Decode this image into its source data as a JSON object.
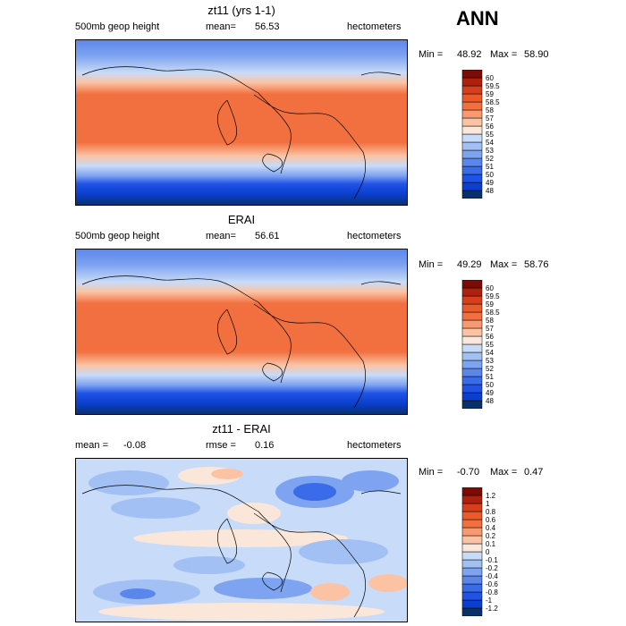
{
  "corner_label": "ANN",
  "panels": [
    {
      "title": "zt11 (yrs 1-1)",
      "left_label": "500mb geop height",
      "mid_label": "mean=",
      "mid_value": "56.53",
      "right_label": "hectometers",
      "min_label": "Min =",
      "min_value": "48.92",
      "max_label": "Max =",
      "max_value": "58.90"
    },
    {
      "title": "ERAI",
      "left_label": "500mb geop height",
      "mid_label": "mean=",
      "mid_value": "56.61",
      "right_label": "hectometers",
      "min_label": "Min =",
      "min_value": "49.29",
      "max_label": "Max =",
      "max_value": "58.76"
    },
    {
      "title": "zt11 - ERAI",
      "left_label": "mean =",
      "left_value": "-0.08",
      "mid_label": "rmse =",
      "mid_value": "0.16",
      "right_label": "hectometers",
      "min_label": "Min =",
      "min_value": "-0.70",
      "max_label": "Max =",
      "max_value": "0.47"
    }
  ],
  "colorbar_abs": {
    "labels": [
      "48",
      "49",
      "50",
      "51",
      "52",
      "53",
      "54",
      "55",
      "56",
      "57",
      "58",
      "58.5",
      "59",
      "59.5",
      "60"
    ],
    "colors": [
      "#08306b",
      "#0a3fcf",
      "#1f52e6",
      "#3a6be8",
      "#5b86ec",
      "#7ea3f0",
      "#a3c0f4",
      "#c8dbf8",
      "#fbe7d9",
      "#fbc3a4",
      "#f8996f",
      "#f2703f",
      "#ec5a2a",
      "#d73f1c",
      "#b0200e",
      "#7b0b06"
    ]
  },
  "colorbar_diff": {
    "labels": [
      "-1.2",
      "-1",
      "-0.8",
      "-0.6",
      "-0.4",
      "-0.2",
      "-0.1",
      "0",
      "0.1",
      "0.2",
      "0.4",
      "0.6",
      "0.8",
      "1",
      "1.2"
    ],
    "colors": [
      "#08306b",
      "#0a3fcf",
      "#1f52e6",
      "#3a6be8",
      "#5b86ec",
      "#7ea3f0",
      "#a3c0f4",
      "#c8dbf8",
      "#fbe7d9",
      "#fbc3a4",
      "#f8996f",
      "#f2703f",
      "#ec5a2a",
      "#d73f1c",
      "#b0200e",
      "#7b0b06"
    ]
  },
  "chart_data": [
    {
      "type": "heatmap",
      "title": "zt11 (yrs 1-1)",
      "variable": "500mb geop height",
      "units": "hectometers",
      "mean": 56.53,
      "min": 48.92,
      "max": 58.9,
      "levels": [
        48,
        49,
        50,
        51,
        52,
        53,
        54,
        55,
        56,
        57,
        58,
        58.5,
        59,
        59.5,
        60
      ],
      "ylim": [
        -90,
        90
      ],
      "zonal_profile": {
        "lat": [
          90,
          80,
          70,
          60,
          50,
          40,
          30,
          20,
          10,
          0,
          -10,
          -20,
          -30,
          -40,
          -50,
          -60,
          -70,
          -80,
          -90
        ],
        "value": [
          52.0,
          52.2,
          52.6,
          53.6,
          54.8,
          56.6,
          58.0,
          58.5,
          58.5,
          58.5,
          58.5,
          58.5,
          57.8,
          56.0,
          53.8,
          51.2,
          50.0,
          49.4,
          49.2
        ]
      }
    },
    {
      "type": "heatmap",
      "title": "ERAI",
      "variable": "500mb geop height",
      "units": "hectometers",
      "mean": 56.61,
      "min": 49.29,
      "max": 58.76,
      "levels": [
        48,
        49,
        50,
        51,
        52,
        53,
        54,
        55,
        56,
        57,
        58,
        58.5,
        59,
        59.5,
        60
      ],
      "ylim": [
        -90,
        90
      ],
      "zonal_profile": {
        "lat": [
          90,
          80,
          70,
          60,
          50,
          40,
          30,
          20,
          10,
          0,
          -10,
          -20,
          -30,
          -40,
          -50,
          -60,
          -70,
          -80,
          -90
        ],
        "value": [
          52.2,
          52.4,
          52.8,
          53.7,
          54.9,
          56.7,
          58.0,
          58.5,
          58.5,
          58.5,
          58.5,
          58.5,
          57.8,
          56.1,
          53.9,
          51.4,
          50.2,
          49.6,
          49.4
        ]
      }
    },
    {
      "type": "heatmap",
      "title": "zt11 - ERAI",
      "units": "hectometers",
      "mean": -0.08,
      "rmse": 0.16,
      "min": -0.7,
      "max": 0.47,
      "levels": [
        -1.2,
        -1,
        -0.8,
        -0.6,
        -0.4,
        -0.2,
        -0.1,
        0,
        0.1,
        0.2,
        0.4,
        0.6,
        0.8,
        1,
        1.2
      ],
      "ylim": [
        -90,
        90
      ]
    }
  ]
}
